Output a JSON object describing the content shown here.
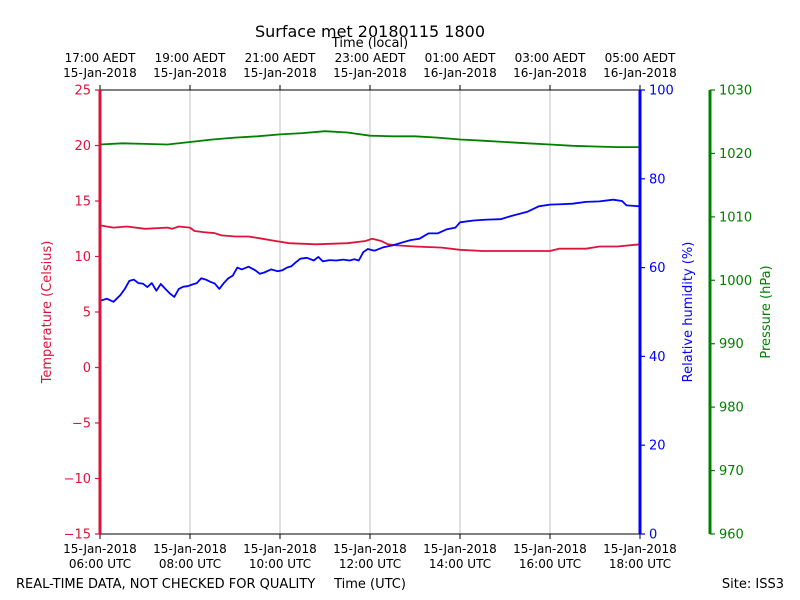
{
  "chart_data": {
    "type": "line",
    "title": "Surface met 20180115 1800",
    "top_axis_label": "Time (local)",
    "xlabel": "Time (UTC)",
    "footer_left": "REAL-TIME DATA, NOT CHECKED FOR QUALITY",
    "footer_right": "Site: ISS3",
    "x_range_hours": [
      0,
      12
    ],
    "x_ticks": [
      {
        "x": 0,
        "utc": [
          "15-Jan-2018",
          "06:00 UTC"
        ],
        "local": [
          "17:00 AEDT",
          "15-Jan-2018"
        ]
      },
      {
        "x": 2,
        "utc": [
          "15-Jan-2018",
          "08:00 UTC"
        ],
        "local": [
          "19:00 AEDT",
          "15-Jan-2018"
        ]
      },
      {
        "x": 4,
        "utc": [
          "15-Jan-2018",
          "10:00 UTC"
        ],
        "local": [
          "21:00 AEDT",
          "15-Jan-2018"
        ]
      },
      {
        "x": 6,
        "utc": [
          "15-Jan-2018",
          "12:00 UTC"
        ],
        "local": [
          "23:00 AEDT",
          "15-Jan-2018"
        ]
      },
      {
        "x": 8,
        "utc": [
          "15-Jan-2018",
          "14:00 UTC"
        ],
        "local": [
          "01:00 AEDT",
          "16-Jan-2018"
        ]
      },
      {
        "x": 10,
        "utc": [
          "15-Jan-2018",
          "16:00 UTC"
        ],
        "local": [
          "03:00 AEDT",
          "16-Jan-2018"
        ]
      },
      {
        "x": 12,
        "utc": [
          "15-Jan-2018",
          "18:00 UTC"
        ],
        "local": [
          "05:00 AEDT",
          "16-Jan-2018"
        ]
      }
    ],
    "axes": {
      "temperature": {
        "label": "Temperature (Celsius)",
        "color": "#dc143c",
        "range": [
          -15,
          25
        ],
        "ticks": [
          25,
          20,
          15,
          10,
          5,
          0,
          -5,
          -10,
          -15
        ],
        "tick_labels": [
          "25",
          "20",
          "15",
          "10",
          "5",
          "0",
          "−5",
          "−10",
          "−15"
        ]
      },
      "humidity": {
        "label": "Relative humidity (%)",
        "color": "#0000ff",
        "range": [
          0,
          100
        ],
        "ticks": [
          100,
          80,
          60,
          40,
          20,
          0
        ],
        "tick_labels": [
          "100",
          "80",
          "60",
          "40",
          "20",
          "0"
        ]
      },
      "pressure": {
        "label": "Pressure (hPa)",
        "color": "#008000",
        "range": [
          960,
          1030
        ],
        "ticks": [
          1030,
          1020,
          1010,
          1000,
          990,
          980,
          970,
          960
        ],
        "tick_labels": [
          "1030",
          "1020",
          "1010",
          "1000",
          "990",
          "980",
          "970",
          "960"
        ]
      }
    },
    "grid": "vertical",
    "series": [
      {
        "axis": "temperature",
        "color": "#dc143c",
        "points": [
          [
            0,
            12.8
          ],
          [
            0.3,
            12.6
          ],
          [
            0.6,
            12.7
          ],
          [
            1,
            12.5
          ],
          [
            1.5,
            12.6
          ],
          [
            1.6,
            12.5
          ],
          [
            1.75,
            12.7
          ],
          [
            2,
            12.6
          ],
          [
            2.1,
            12.3
          ],
          [
            2.3,
            12.2
          ],
          [
            2.55,
            12.1
          ],
          [
            2.7,
            11.9
          ],
          [
            3,
            11.8
          ],
          [
            3.3,
            11.8
          ],
          [
            3.6,
            11.6
          ],
          [
            3.9,
            11.4
          ],
          [
            4.2,
            11.2
          ],
          [
            4.8,
            11.1
          ],
          [
            5.5,
            11.2
          ],
          [
            5.9,
            11.4
          ],
          [
            6.05,
            11.6
          ],
          [
            6.25,
            11.4
          ],
          [
            6.4,
            11.1
          ],
          [
            6.6,
            11.0
          ],
          [
            7,
            10.9
          ],
          [
            7.6,
            10.8
          ],
          [
            8.0,
            10.6
          ],
          [
            8.5,
            10.5
          ],
          [
            9,
            10.5
          ],
          [
            9.5,
            10.5
          ],
          [
            10,
            10.5
          ],
          [
            10.2,
            10.7
          ],
          [
            10.8,
            10.7
          ],
          [
            11.1,
            10.9
          ],
          [
            11.5,
            10.9
          ],
          [
            12,
            11.1
          ]
        ]
      },
      {
        "axis": "humidity",
        "color": "#0000ff",
        "points": [
          [
            0,
            52.5
          ],
          [
            0.15,
            53.0
          ],
          [
            0.3,
            52.3
          ],
          [
            0.45,
            53.8
          ],
          [
            0.55,
            55.2
          ],
          [
            0.65,
            57.0
          ],
          [
            0.75,
            57.3
          ],
          [
            0.85,
            56.5
          ],
          [
            0.95,
            56.4
          ],
          [
            1.05,
            55.6
          ],
          [
            1.15,
            56.5
          ],
          [
            1.25,
            54.8
          ],
          [
            1.35,
            56.3
          ],
          [
            1.45,
            55.2
          ],
          [
            1.55,
            54.2
          ],
          [
            1.65,
            53.4
          ],
          [
            1.75,
            55.2
          ],
          [
            1.85,
            55.7
          ],
          [
            1.95,
            55.8
          ],
          [
            2.05,
            56.2
          ],
          [
            2.15,
            56.5
          ],
          [
            2.25,
            57.6
          ],
          [
            2.35,
            57.3
          ],
          [
            2.45,
            56.8
          ],
          [
            2.55,
            56.4
          ],
          [
            2.65,
            55.2
          ],
          [
            2.75,
            56.5
          ],
          [
            2.85,
            57.6
          ],
          [
            2.95,
            58.2
          ],
          [
            3.05,
            60.0
          ],
          [
            3.15,
            59.6
          ],
          [
            3.3,
            60.2
          ],
          [
            3.45,
            59.4
          ],
          [
            3.55,
            58.6
          ],
          [
            3.65,
            58.9
          ],
          [
            3.8,
            59.6
          ],
          [
            3.95,
            59.2
          ],
          [
            4.05,
            59.4
          ],
          [
            4.15,
            60.0
          ],
          [
            4.25,
            60.3
          ],
          [
            4.35,
            61.2
          ],
          [
            4.45,
            62.0
          ],
          [
            4.6,
            62.2
          ],
          [
            4.75,
            61.6
          ],
          [
            4.85,
            62.4
          ],
          [
            4.95,
            61.4
          ],
          [
            5.1,
            61.7
          ],
          [
            5.25,
            61.6
          ],
          [
            5.4,
            61.8
          ],
          [
            5.55,
            61.6
          ],
          [
            5.65,
            61.9
          ],
          [
            5.75,
            61.6
          ],
          [
            5.85,
            63.5
          ],
          [
            5.95,
            64.2
          ],
          [
            6.1,
            63.8
          ],
          [
            6.3,
            64.6
          ],
          [
            6.5,
            65.0
          ],
          [
            6.7,
            65.6
          ],
          [
            6.9,
            66.2
          ],
          [
            7.1,
            66.5
          ],
          [
            7.3,
            67.7
          ],
          [
            7.5,
            67.7
          ],
          [
            7.7,
            68.6
          ],
          [
            7.9,
            69.0
          ],
          [
            8.0,
            70.2
          ],
          [
            8.3,
            70.6
          ],
          [
            8.6,
            70.8
          ],
          [
            8.9,
            70.9
          ],
          [
            9.2,
            71.8
          ],
          [
            9.5,
            72.6
          ],
          [
            9.75,
            73.8
          ],
          [
            10.0,
            74.2
          ],
          [
            10.3,
            74.3
          ],
          [
            10.5,
            74.4
          ],
          [
            10.8,
            74.8
          ],
          [
            11.1,
            74.9
          ],
          [
            11.4,
            75.3
          ],
          [
            11.6,
            75.0
          ],
          [
            11.7,
            74.0
          ],
          [
            12.0,
            73.8
          ]
        ]
      },
      {
        "axis": "pressure",
        "color": "#008000",
        "points": [
          [
            0,
            1021.4
          ],
          [
            0.5,
            1021.6
          ],
          [
            1.0,
            1021.5
          ],
          [
            1.5,
            1021.4
          ],
          [
            2.0,
            1021.8
          ],
          [
            2.5,
            1022.2
          ],
          [
            3.0,
            1022.5
          ],
          [
            3.5,
            1022.7
          ],
          [
            4.0,
            1023.0
          ],
          [
            4.5,
            1023.2
          ],
          [
            5.0,
            1023.5
          ],
          [
            5.5,
            1023.3
          ],
          [
            6.0,
            1022.8
          ],
          [
            6.5,
            1022.7
          ],
          [
            7.0,
            1022.7
          ],
          [
            7.5,
            1022.5
          ],
          [
            8.0,
            1022.2
          ],
          [
            8.5,
            1022.0
          ],
          [
            9.0,
            1021.8
          ],
          [
            9.5,
            1021.6
          ],
          [
            10.0,
            1021.4
          ],
          [
            10.5,
            1021.2
          ],
          [
            11.0,
            1021.1
          ],
          [
            11.5,
            1021.0
          ],
          [
            12.0,
            1021.0
          ]
        ]
      }
    ]
  }
}
